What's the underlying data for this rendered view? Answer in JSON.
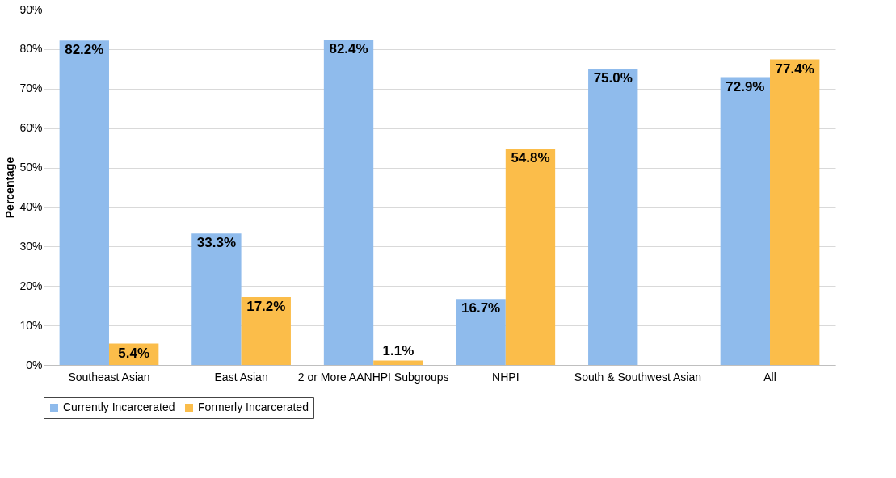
{
  "chart_data": {
    "type": "bar",
    "ylabel": "Percentage",
    "categories": [
      "Southeast Asian",
      "East Asian",
      "2 or More AANHPI Subgroups",
      "NHPI",
      "South & Southwest Asian",
      "All"
    ],
    "series": [
      {
        "name": "Currently Incarcerated",
        "color": "#8fbbec",
        "values": [
          82.2,
          33.3,
          82.4,
          16.7,
          75.0,
          72.9
        ],
        "value_labels": [
          "82.2%",
          "33.3%",
          "82.4%",
          "16.7%",
          "75.0%",
          "72.9%"
        ]
      },
      {
        "name": "Formerly Incarcerated",
        "color": "#fbbd4a",
        "values": [
          5.4,
          17.2,
          1.1,
          54.8,
          null,
          77.4
        ],
        "value_labels": [
          "5.4%",
          "17.2%",
          "1.1%",
          "54.8%",
          null,
          "77.4%"
        ]
      }
    ],
    "ylim": [
      0,
      90
    ],
    "yticks": [
      {
        "value": 0,
        "label": "0%"
      },
      {
        "value": 10,
        "label": "10%"
      },
      {
        "value": 20,
        "label": "20%"
      },
      {
        "value": 30,
        "label": "30%"
      },
      {
        "value": 40,
        "label": "40%"
      },
      {
        "value": 50,
        "label": "50%"
      },
      {
        "value": 60,
        "label": "60%"
      },
      {
        "value": 70,
        "label": "70%"
      },
      {
        "value": 80,
        "label": "80%"
      },
      {
        "value": 90,
        "label": "90%"
      }
    ],
    "grid": "y",
    "legend": "bottom"
  }
}
